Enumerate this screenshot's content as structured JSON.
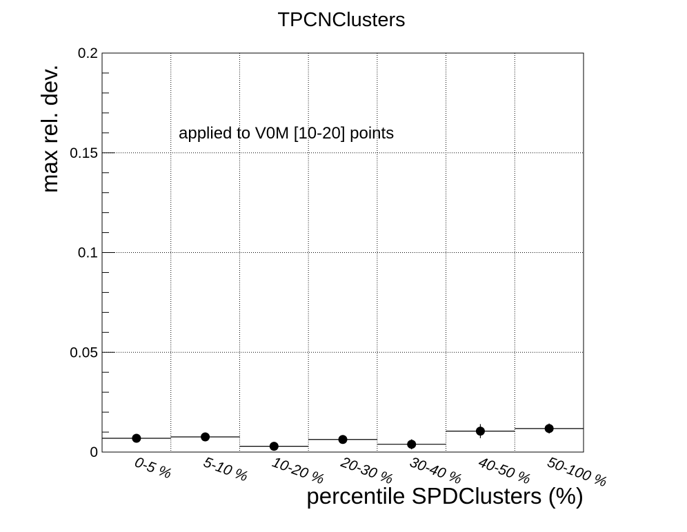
{
  "chart_data": {
    "type": "scatter",
    "title": "TPCNClusters",
    "annotation": "applied to V0M [10-20] points",
    "xlabel": "percentile SPDClusters (%)",
    "ylabel": "max rel. dev.",
    "categories": [
      "0-5 %",
      "5-10 %",
      "10-20 %",
      "20-30 %",
      "30-40 %",
      "40-50 %",
      "50-100 %"
    ],
    "values": [
      0.0069,
      0.0076,
      0.0029,
      0.0063,
      0.0039,
      0.0105,
      0.0118
    ],
    "errors": [
      0.0015,
      0.0022,
      0.0012,
      0.0015,
      0.0025,
      0.0035,
      0.0025
    ],
    "hist_values": [
      0.0069,
      0.0076,
      0.0029,
      0.0063,
      0.0039,
      0.0105,
      0.0118
    ],
    "ylim": [
      0,
      0.2
    ],
    "yticks": [
      {
        "value": 0,
        "label": "0"
      },
      {
        "value": 0.05,
        "label": "0.05"
      },
      {
        "value": 0.1,
        "label": "0.1"
      },
      {
        "value": 0.15,
        "label": "0.15"
      },
      {
        "value": 0.2,
        "label": "0.2"
      }
    ],
    "grid": true,
    "colors": {
      "marker": "#000000",
      "line": "#000000",
      "grid": "#000000"
    }
  }
}
